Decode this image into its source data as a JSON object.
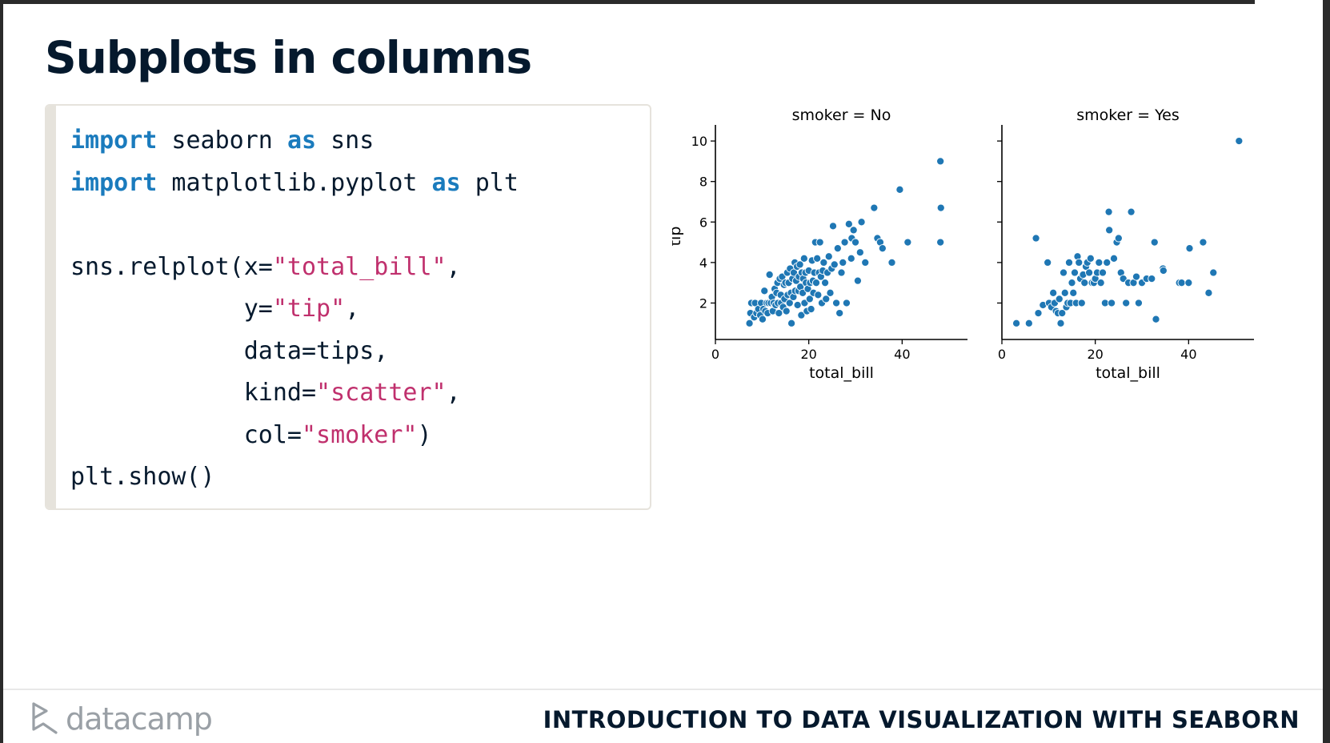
{
  "slide": {
    "title": "Subplots in columns",
    "brand_name": "datacamp",
    "course_title": "INTRODUCTION TO DATA VISUALIZATION WITH SEABORN"
  },
  "code_lines": [
    [
      {
        "t": "import",
        "c": "kw"
      },
      {
        "t": " seaborn ",
        "c": ""
      },
      {
        "t": "as",
        "c": "kw"
      },
      {
        "t": " sns",
        "c": ""
      }
    ],
    [
      {
        "t": "import",
        "c": "kw"
      },
      {
        "t": " matplotlib.pyplot ",
        "c": ""
      },
      {
        "t": "as",
        "c": "kw"
      },
      {
        "t": " plt",
        "c": ""
      }
    ],
    [],
    [
      {
        "t": "sns.relplot(x=",
        "c": ""
      },
      {
        "t": "\"total_bill\"",
        "c": "str"
      },
      {
        "t": ",",
        "c": ""
      }
    ],
    [
      {
        "t": "            y=",
        "c": ""
      },
      {
        "t": "\"tip\"",
        "c": "str"
      },
      {
        "t": ",",
        "c": ""
      }
    ],
    [
      {
        "t": "            data=tips,",
        "c": ""
      }
    ],
    [
      {
        "t": "            kind=",
        "c": ""
      },
      {
        "t": "\"scatter\"",
        "c": "str"
      },
      {
        "t": ",",
        "c": ""
      }
    ],
    [
      {
        "t": "            col=",
        "c": ""
      },
      {
        "t": "\"smoker\"",
        "c": "str"
      },
      {
        "t": ")",
        "c": ""
      }
    ],
    [
      {
        "t": "plt.show()",
        "c": ""
      }
    ]
  ],
  "colors": {
    "point": "#1f77b4",
    "keyword": "#1a7bbd",
    "string": "#c0306d",
    "title": "#05192d"
  },
  "chart_data": [
    {
      "type": "scatter",
      "title": "smoker = No",
      "xlabel": "total_bill",
      "ylabel": "tip",
      "xlim": [
        0,
        54
      ],
      "ylim": [
        0.2,
        10.4
      ],
      "xticks": [
        0,
        20,
        40
      ],
      "yticks": [
        2,
        4,
        6,
        8,
        10
      ],
      "points": [
        [
          7.3,
          1.0
        ],
        [
          7.5,
          1.5
        ],
        [
          7.7,
          2.0
        ],
        [
          8.3,
          1.3
        ],
        [
          8.5,
          2.0
        ],
        [
          8.8,
          1.5
        ],
        [
          9.2,
          1.7
        ],
        [
          9.6,
          1.4
        ],
        [
          9.8,
          2.0
        ],
        [
          10.1,
          1.2
        ],
        [
          10.3,
          1.7
        ],
        [
          10.5,
          2.6
        ],
        [
          10.7,
          1.6
        ],
        [
          11.0,
          2.0
        ],
        [
          11.2,
          1.5
        ],
        [
          11.4,
          2.0
        ],
        [
          11.6,
          3.4
        ],
        [
          11.9,
          2.0
        ],
        [
          12.1,
          2.3
        ],
        [
          12.3,
          1.6
        ],
        [
          12.5,
          2.0
        ],
        [
          12.7,
          2.7
        ],
        [
          12.9,
          1.9
        ],
        [
          13.1,
          2.5
        ],
        [
          13.3,
          3.0
        ],
        [
          13.4,
          2.0
        ],
        [
          13.6,
          1.5
        ],
        [
          13.8,
          3.2
        ],
        [
          14.0,
          2.4
        ],
        [
          14.1,
          2.0
        ],
        [
          14.3,
          3.3
        ],
        [
          14.5,
          1.8
        ],
        [
          14.7,
          2.9
        ],
        [
          14.8,
          2.2
        ],
        [
          15.0,
          3.0
        ],
        [
          15.2,
          1.6
        ],
        [
          15.4,
          3.5
        ],
        [
          15.5,
          2.4
        ],
        [
          15.7,
          3.0
        ],
        [
          15.9,
          2.0
        ],
        [
          16.0,
          3.7
        ],
        [
          16.2,
          2.5
        ],
        [
          16.3,
          1.0
        ],
        [
          16.5,
          3.2
        ],
        [
          16.7,
          2.3
        ],
        [
          16.8,
          3.5
        ],
        [
          17.0,
          4.0
        ],
        [
          17.1,
          2.6
        ],
        [
          17.3,
          3.1
        ],
        [
          17.5,
          3.8
        ],
        [
          17.6,
          1.9
        ],
        [
          17.8,
          2.6
        ],
        [
          17.9,
          3.3
        ],
        [
          18.1,
          3.9
        ],
        [
          18.2,
          2.8
        ],
        [
          18.4,
          1.4
        ],
        [
          18.5,
          3.5
        ],
        [
          18.7,
          2.5
        ],
        [
          18.8,
          3.2
        ],
        [
          19.0,
          4.2
        ],
        [
          19.1,
          2.0
        ],
        [
          19.3,
          3.5
        ],
        [
          19.4,
          3.0
        ],
        [
          19.6,
          1.6
        ],
        [
          19.8,
          2.7
        ],
        [
          20.0,
          3.6
        ],
        [
          20.2,
          2.2
        ],
        [
          20.3,
          3.0
        ],
        [
          20.5,
          1.7
        ],
        [
          20.7,
          4.1
        ],
        [
          20.9,
          3.1
        ],
        [
          21.0,
          2.5
        ],
        [
          21.2,
          3.5
        ],
        [
          21.4,
          5.0
        ],
        [
          21.6,
          3.0
        ],
        [
          21.8,
          4.2
        ],
        [
          22.0,
          2.4
        ],
        [
          22.2,
          3.5
        ],
        [
          22.4,
          5.0
        ],
        [
          22.6,
          3.3
        ],
        [
          22.8,
          2.0
        ],
        [
          23.0,
          3.6
        ],
        [
          23.2,
          4.0
        ],
        [
          23.5,
          3.0
        ],
        [
          23.7,
          2.2
        ],
        [
          24.0,
          3.5
        ],
        [
          24.3,
          4.3
        ],
        [
          24.6,
          2.5
        ],
        [
          24.9,
          3.7
        ],
        [
          25.2,
          5.8
        ],
        [
          25.5,
          3.9
        ],
        [
          25.9,
          2.0
        ],
        [
          26.2,
          4.7
        ],
        [
          26.6,
          1.5
        ],
        [
          27.0,
          3.5
        ],
        [
          27.3,
          4.0
        ],
        [
          27.7,
          5.0
        ],
        [
          28.1,
          2.0
        ],
        [
          28.6,
          5.9
        ],
        [
          29.1,
          4.2
        ],
        [
          29.2,
          5.2
        ],
        [
          29.6,
          5.6
        ],
        [
          30.0,
          5.0
        ],
        [
          30.5,
          3.1
        ],
        [
          31.0,
          4.5
        ],
        [
          31.3,
          6.0
        ],
        [
          32.1,
          4.0
        ],
        [
          34.0,
          6.7
        ],
        [
          34.7,
          5.2
        ],
        [
          35.3,
          5.0
        ],
        [
          35.8,
          4.7
        ],
        [
          37.8,
          4.0
        ],
        [
          39.5,
          7.6
        ],
        [
          41.2,
          5.0
        ],
        [
          48.2,
          9.0
        ],
        [
          48.3,
          6.7
        ],
        [
          48.2,
          5.0
        ]
      ]
    },
    {
      "type": "scatter",
      "title": "smoker = Yes",
      "xlabel": "total_bill",
      "ylabel": "",
      "xlim": [
        0,
        54
      ],
      "ylim": [
        0.2,
        10.4
      ],
      "xticks": [
        0,
        20,
        40
      ],
      "yticks": [
        2,
        4,
        6,
        8,
        10
      ],
      "points": [
        [
          3.1,
          1.0
        ],
        [
          5.8,
          1.0
        ],
        [
          7.3,
          5.2
        ],
        [
          7.8,
          1.5
        ],
        [
          8.8,
          1.9
        ],
        [
          9.8,
          4.0
        ],
        [
          10.1,
          2.0
        ],
        [
          10.6,
          1.8
        ],
        [
          11.0,
          2.5
        ],
        [
          11.3,
          2.0
        ],
        [
          11.6,
          1.6
        ],
        [
          12.0,
          1.5
        ],
        [
          12.3,
          2.2
        ],
        [
          12.6,
          1.0
        ],
        [
          12.9,
          1.5
        ],
        [
          13.2,
          3.5
        ],
        [
          13.5,
          2.5
        ],
        [
          13.8,
          1.8
        ],
        [
          14.1,
          2.0
        ],
        [
          14.4,
          4.0
        ],
        [
          14.7,
          2.0
        ],
        [
          15.0,
          3.0
        ],
        [
          15.3,
          2.5
        ],
        [
          15.6,
          3.5
        ],
        [
          15.9,
          2.0
        ],
        [
          16.2,
          4.3
        ],
        [
          16.5,
          4.0
        ],
        [
          16.8,
          3.2
        ],
        [
          17.1,
          2.0
        ],
        [
          17.4,
          3.4
        ],
        [
          17.7,
          3.0
        ],
        [
          18.0,
          3.8
        ],
        [
          18.3,
          4.0
        ],
        [
          18.7,
          3.5
        ],
        [
          19.0,
          4.2
        ],
        [
          19.3,
          3.0
        ],
        [
          19.7,
          3.0
        ],
        [
          20.0,
          3.2
        ],
        [
          20.4,
          3.5
        ],
        [
          20.8,
          4.0
        ],
        [
          21.2,
          3.0
        ],
        [
          21.6,
          3.5
        ],
        [
          22.1,
          2.0
        ],
        [
          22.5,
          4.0
        ],
        [
          22.9,
          6.5
        ],
        [
          23.0,
          5.6
        ],
        [
          23.5,
          2.0
        ],
        [
          24.0,
          4.2
        ],
        [
          24.6,
          5.0
        ],
        [
          25.0,
          5.2
        ],
        [
          25.5,
          3.5
        ],
        [
          26.0,
          3.2
        ],
        [
          26.6,
          2.0
        ],
        [
          27.1,
          3.0
        ],
        [
          27.7,
          6.5
        ],
        [
          28.2,
          3.0
        ],
        [
          28.8,
          3.3
        ],
        [
          29.3,
          2.0
        ],
        [
          30.0,
          3.0
        ],
        [
          31.0,
          3.2
        ],
        [
          32.1,
          3.2
        ],
        [
          32.7,
          5.0
        ],
        [
          33.0,
          1.2
        ],
        [
          34.5,
          3.7
        ],
        [
          34.6,
          3.6
        ],
        [
          38.0,
          3.0
        ],
        [
          38.5,
          3.0
        ],
        [
          40.0,
          3.0
        ],
        [
          40.2,
          4.7
        ],
        [
          43.1,
          5.0
        ],
        [
          44.3,
          2.5
        ],
        [
          45.3,
          3.5
        ],
        [
          50.8,
          10.0
        ]
      ]
    }
  ]
}
